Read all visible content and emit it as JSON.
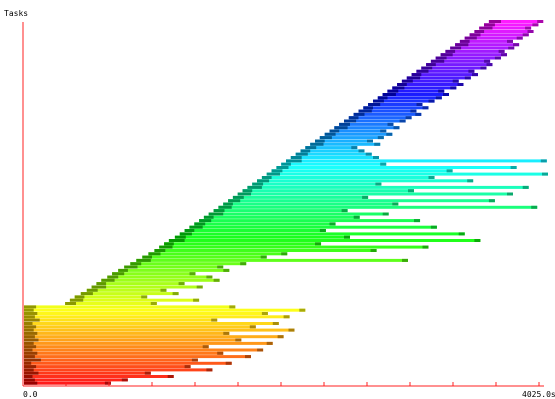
{
  "chart_data": {
    "type": "gantt",
    "ylabel": "Tasks",
    "x_tick_labels": [
      "0.0",
      "4025.0s"
    ],
    "xlim": [
      0,
      4025
    ],
    "axis_color": "#ff2020",
    "grid": false,
    "legend": "none",
    "note": "Each row is one task. start/end are seconds; wait is the short darker segment at the beginning of each bar. Tasks ordered bottom-to-top, colored by rainbow hue (red to magenta).",
    "tasks": [
      {
        "start": 0,
        "end": 720,
        "wait": 110
      },
      {
        "start": 0,
        "end": 860,
        "wait": 90
      },
      {
        "start": 0,
        "end": 1240,
        "wait": 70
      },
      {
        "start": 0,
        "end": 1050,
        "wait": 120
      },
      {
        "start": 0,
        "end": 1560,
        "wait": 80
      },
      {
        "start": 0,
        "end": 1380,
        "wait": 100
      },
      {
        "start": 0,
        "end": 1720,
        "wait": 60
      },
      {
        "start": 0,
        "end": 1440,
        "wait": 140
      },
      {
        "start": 0,
        "end": 1880,
        "wait": 90
      },
      {
        "start": 0,
        "end": 1650,
        "wait": 110
      },
      {
        "start": 0,
        "end": 1980,
        "wait": 70
      },
      {
        "start": 0,
        "end": 1530,
        "wait": 100
      },
      {
        "start": 0,
        "end": 2060,
        "wait": 80
      },
      {
        "start": 0,
        "end": 1800,
        "wait": 120
      },
      {
        "start": 0,
        "end": 2150,
        "wait": 90
      },
      {
        "start": 0,
        "end": 1700,
        "wait": 110
      },
      {
        "start": 0,
        "end": 2240,
        "wait": 80
      },
      {
        "start": 0,
        "end": 1920,
        "wait": 100
      },
      {
        "start": 0,
        "end": 2110,
        "wait": 70
      },
      {
        "start": 0,
        "end": 1600,
        "wait": 130
      },
      {
        "start": 0,
        "end": 2200,
        "wait": 90
      },
      {
        "start": 0,
        "end": 2020,
        "wait": 110
      },
      {
        "start": 0,
        "end": 2330,
        "wait": 80
      },
      {
        "start": 0,
        "end": 1750,
        "wait": 100
      },
      {
        "start": 340,
        "end": 1100,
        "wait": 90
      },
      {
        "start": 380,
        "end": 1450,
        "wait": 110
      },
      {
        "start": 420,
        "end": 1020,
        "wait": 80
      },
      {
        "start": 470,
        "end": 1280,
        "wait": 100
      },
      {
        "start": 520,
        "end": 1180,
        "wait": 90
      },
      {
        "start": 560,
        "end": 1480,
        "wait": 120
      },
      {
        "start": 600,
        "end": 1330,
        "wait": 80
      },
      {
        "start": 640,
        "end": 1620,
        "wait": 110
      },
      {
        "start": 690,
        "end": 1560,
        "wait": 90
      },
      {
        "start": 730,
        "end": 1420,
        "wait": 100
      },
      {
        "start": 780,
        "end": 1700,
        "wait": 80
      },
      {
        "start": 830,
        "end": 1650,
        "wait": 110
      },
      {
        "start": 880,
        "end": 1840,
        "wait": 90
      },
      {
        "start": 930,
        "end": 3180,
        "wait": 120
      },
      {
        "start": 980,
        "end": 2010,
        "wait": 80
      },
      {
        "start": 1030,
        "end": 2180,
        "wait": 100
      },
      {
        "start": 1080,
        "end": 2920,
        "wait": 90
      },
      {
        "start": 1120,
        "end": 3350,
        "wait": 110
      },
      {
        "start": 1160,
        "end": 2460,
        "wait": 80
      },
      {
        "start": 1200,
        "end": 3780,
        "wait": 130
      },
      {
        "start": 1250,
        "end": 2700,
        "wait": 90
      },
      {
        "start": 1290,
        "end": 3650,
        "wait": 100
      },
      {
        "start": 1330,
        "end": 2500,
        "wait": 80
      },
      {
        "start": 1370,
        "end": 3420,
        "wait": 110
      },
      {
        "start": 1410,
        "end": 2580,
        "wait": 90
      },
      {
        "start": 1450,
        "end": 3280,
        "wait": 100
      },
      {
        "start": 1490,
        "end": 2780,
        "wait": 80
      },
      {
        "start": 1530,
        "end": 3020,
        "wait": 120
      },
      {
        "start": 1570,
        "end": 2680,
        "wait": 90
      },
      {
        "start": 1610,
        "end": 4250,
        "wait": 110
      },
      {
        "start": 1650,
        "end": 3100,
        "wait": 80
      },
      {
        "start": 1690,
        "end": 3900,
        "wait": 100
      },
      {
        "start": 1730,
        "end": 2850,
        "wait": 90
      },
      {
        "start": 1770,
        "end": 4050,
        "wait": 110
      },
      {
        "start": 1810,
        "end": 3230,
        "wait": 80
      },
      {
        "start": 1850,
        "end": 4180,
        "wait": 120
      },
      {
        "start": 1890,
        "end": 2960,
        "wait": 90
      },
      {
        "start": 1930,
        "end": 3720,
        "wait": 100
      },
      {
        "start": 1970,
        "end": 3400,
        "wait": 80
      },
      {
        "start": 2010,
        "end": 4500,
        "wait": 110
      },
      {
        "start": 2050,
        "end": 3550,
        "wait": 90
      },
      {
        "start": 2090,
        "end": 4080,
        "wait": 100
      },
      {
        "start": 2130,
        "end": 3000,
        "wait": 80
      },
      {
        "start": 2170,
        "end": 4330,
        "wait": 130
      },
      {
        "start": 2210,
        "end": 2940,
        "wait": 90
      },
      {
        "start": 2250,
        "end": 2880,
        "wait": 100
      },
      {
        "start": 2290,
        "end": 2820,
        "wait": 80
      },
      {
        "start": 2330,
        "end": 2760,
        "wait": 90
      },
      {
        "start": 2370,
        "end": 2950,
        "wait": 110
      },
      {
        "start": 2410,
        "end": 2890,
        "wait": 80
      },
      {
        "start": 2450,
        "end": 2980,
        "wait": 100
      },
      {
        "start": 2490,
        "end": 3050,
        "wait": 90
      },
      {
        "start": 2530,
        "end": 3000,
        "wait": 80
      },
      {
        "start": 2570,
        "end": 3110,
        "wait": 110
      },
      {
        "start": 2610,
        "end": 3060,
        "wait": 90
      },
      {
        "start": 2650,
        "end": 3160,
        "wait": 100
      },
      {
        "start": 2690,
        "end": 3210,
        "wait": 80
      },
      {
        "start": 2730,
        "end": 3290,
        "wait": 90
      },
      {
        "start": 2770,
        "end": 3250,
        "wait": 110
      },
      {
        "start": 2810,
        "end": 3350,
        "wait": 80
      },
      {
        "start": 2850,
        "end": 3300,
        "wait": 100
      },
      {
        "start": 2890,
        "end": 3400,
        "wait": 90
      },
      {
        "start": 2930,
        "end": 3460,
        "wait": 80
      },
      {
        "start": 2970,
        "end": 3520,
        "wait": 110
      },
      {
        "start": 3010,
        "end": 3480,
        "wait": 90
      },
      {
        "start": 3050,
        "end": 3580,
        "wait": 100
      },
      {
        "start": 3090,
        "end": 3640,
        "wait": 80
      },
      {
        "start": 3130,
        "end": 3600,
        "wait": 90
      },
      {
        "start": 3170,
        "end": 3700,
        "wait": 110
      },
      {
        "start": 3210,
        "end": 3760,
        "wait": 80
      },
      {
        "start": 3250,
        "end": 3730,
        "wait": 100
      },
      {
        "start": 3290,
        "end": 3830,
        "wait": 90
      },
      {
        "start": 3330,
        "end": 3880,
        "wait": 80
      },
      {
        "start": 3370,
        "end": 3860,
        "wait": 110
      },
      {
        "start": 3410,
        "end": 3950,
        "wait": 90
      },
      {
        "start": 3450,
        "end": 4000,
        "wait": 100
      },
      {
        "start": 3490,
        "end": 3980,
        "wait": 80
      },
      {
        "start": 3530,
        "end": 4060,
        "wait": 90
      },
      {
        "start": 3570,
        "end": 4100,
        "wait": 110
      },
      {
        "start": 3610,
        "end": 4050,
        "wait": 80
      },
      {
        "start": 3650,
        "end": 4130,
        "wait": 100
      },
      {
        "start": 3690,
        "end": 4180,
        "wait": 90
      },
      {
        "start": 3730,
        "end": 4220,
        "wait": 80
      },
      {
        "start": 3770,
        "end": 4200,
        "wait": 110
      },
      {
        "start": 3810,
        "end": 4260,
        "wait": 90
      },
      {
        "start": 3850,
        "end": 4300,
        "wait": 100
      }
    ]
  }
}
